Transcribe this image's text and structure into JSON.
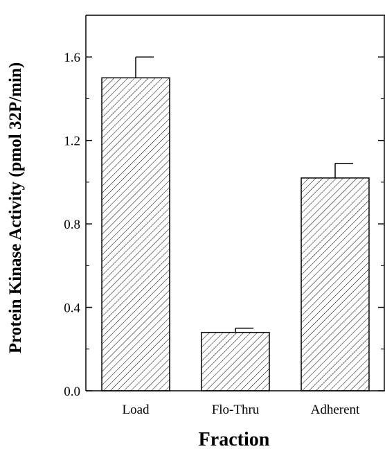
{
  "chart_data": {
    "type": "bar",
    "title": "",
    "xlabel": "Fraction",
    "ylabel": "Protein Kinase Activity (pmol 32P/min)",
    "categories": [
      "Load",
      "Flo-Thru",
      "Adherent"
    ],
    "values": [
      1.5,
      0.28,
      1.02
    ],
    "errors": [
      0.1,
      0.02,
      0.07
    ],
    "ylim": [
      0,
      1.8
    ],
    "yticks": [
      "0.0",
      "0.4",
      "0.8",
      "1.2",
      "1.6"
    ],
    "bar_fill": "diagonal-hatch",
    "grid": false,
    "legend": "none",
    "colors": {
      "stroke": "#000000",
      "background": "#ffffff"
    }
  }
}
